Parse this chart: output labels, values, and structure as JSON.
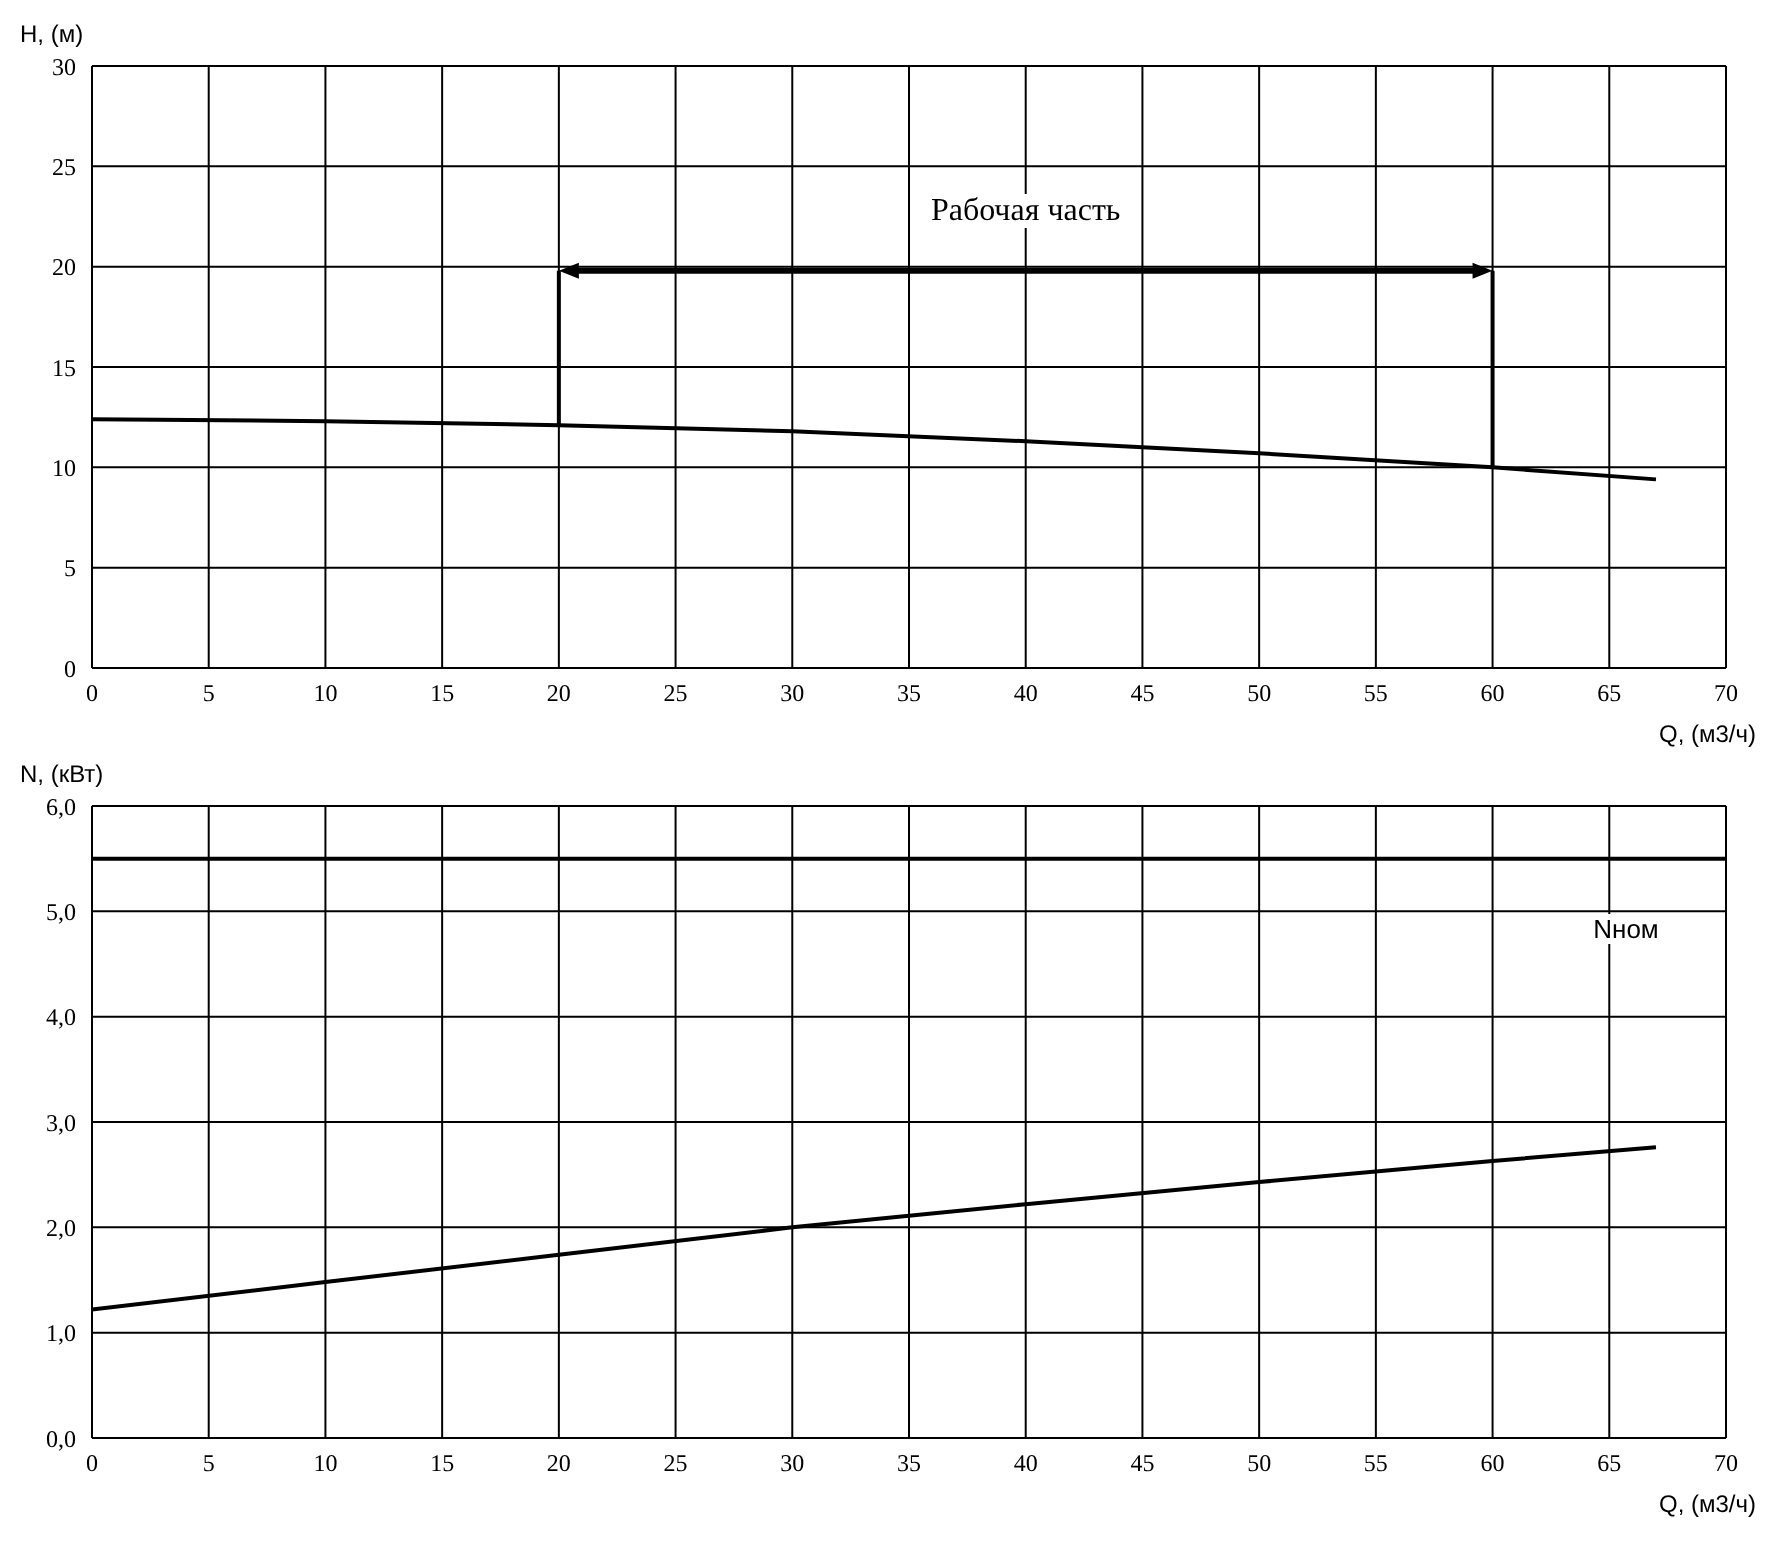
{
  "chart_data": [
    {
      "type": "line",
      "xlabel": "Q, (м3/ч)",
      "ylabel": "H, (м)",
      "xlim": [
        0,
        70
      ],
      "ylim": [
        0,
        30
      ],
      "xticks": [
        0,
        5,
        10,
        15,
        20,
        25,
        30,
        35,
        40,
        45,
        50,
        55,
        60,
        65,
        70
      ],
      "yticks": [
        0,
        5,
        10,
        15,
        20,
        25,
        30
      ],
      "grid": true,
      "marker": "none",
      "line_style": "solid",
      "series": [
        {
          "color": "#000000",
          "x": [
            0,
            10,
            20,
            30,
            40,
            50,
            60,
            67
          ],
          "values": [
            12.4,
            12.3,
            12.1,
            11.8,
            11.3,
            10.7,
            10.0,
            9.4
          ]
        },
        {
          "color": "#000000",
          "x": [
            20,
            20
          ],
          "values": [
            12.1,
            19.8
          ]
        },
        {
          "color": "#000000",
          "x": [
            60,
            60
          ],
          "values": [
            10.0,
            19.8
          ]
        }
      ],
      "annotations": [
        "Рабочая часть"
      ]
    },
    {
      "type": "line",
      "xlabel": "Q, (м3/ч)",
      "ylabel": "N, (кВт)",
      "xlim": [
        0,
        70
      ],
      "ylim": [
        0,
        6
      ],
      "xticks": [
        0,
        5,
        10,
        15,
        20,
        25,
        30,
        35,
        40,
        45,
        50,
        55,
        60,
        65,
        70
      ],
      "yticks": [
        {
          "value": 0,
          "label": "0,0"
        },
        {
          "value": 1,
          "label": "1,0"
        },
        {
          "value": 2,
          "label": "2,0"
        },
        {
          "value": 3,
          "label": "3,0"
        },
        {
          "value": 4,
          "label": "4,0"
        },
        {
          "value": 5,
          "label": "5,0"
        },
        {
          "value": 6,
          "label": "6,0"
        }
      ],
      "grid": true,
      "marker": "none",
      "line_style": "solid",
      "series": [
        {
          "color": "#000000",
          "x": [
            0,
            10,
            20,
            30,
            40,
            50,
            60,
            67
          ],
          "values": [
            1.22,
            1.48,
            1.74,
            2.0,
            2.22,
            2.43,
            2.63,
            2.76
          ]
        }
      ],
      "ref_lines": [
        {
          "axis": "y",
          "value": 5.5,
          "label": "Nном",
          "color": "#000000"
        }
      ]
    }
  ]
}
